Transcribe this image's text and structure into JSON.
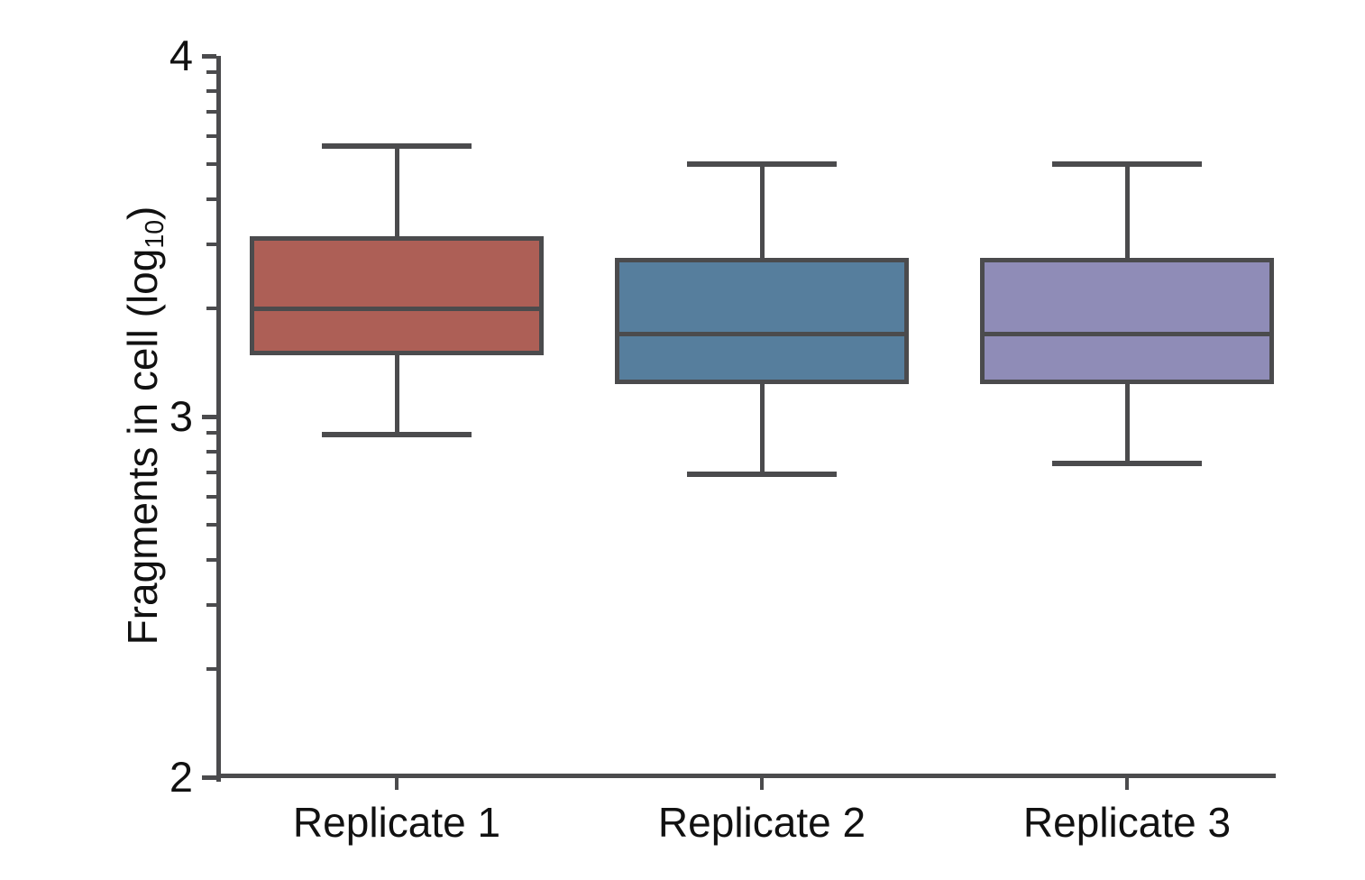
{
  "chart_data": {
    "type": "box",
    "title": "",
    "xlabel": "",
    "ylabel": {
      "main": "Fragments in cell (log",
      "sub": "10",
      "end": ")"
    },
    "categories": [
      "Replicate 1",
      "Replicate 2",
      "Replicate 3"
    ],
    "y_axis": {
      "min": 2,
      "max": 4,
      "major_ticks": [
        4,
        3,
        2
      ],
      "major_tick_labels": [
        "4",
        "3",
        "2"
      ],
      "minor_tick_values": [
        3.954,
        3.903,
        3.845,
        3.778,
        3.699,
        3.602,
        3.477,
        3.301,
        2.954,
        2.903,
        2.845,
        2.778,
        2.699,
        2.602,
        2.477,
        2.301
      ],
      "minor_tick_style": "log10 subdivisions (9..2 per decade)"
    },
    "series": [
      {
        "name": "Replicate 1",
        "color": "#ad5f56",
        "whisker_low": 2.95,
        "q1": 3.17,
        "median": 3.3,
        "q3": 3.5,
        "whisker_high": 3.75
      },
      {
        "name": "Replicate 2",
        "color": "#567e9d",
        "whisker_low": 2.84,
        "q1": 3.09,
        "median": 3.23,
        "q3": 3.44,
        "whisker_high": 3.7
      },
      {
        "name": "Replicate 3",
        "color": "#8f8cb7",
        "whisker_low": 2.87,
        "q1": 3.09,
        "median": 3.23,
        "q3": 3.44,
        "whisker_high": 3.7
      }
    ],
    "grid": false,
    "legend": "none",
    "line_color": "#4b4b4d",
    "text_color": "#111111",
    "background_color": "#ffffff"
  }
}
